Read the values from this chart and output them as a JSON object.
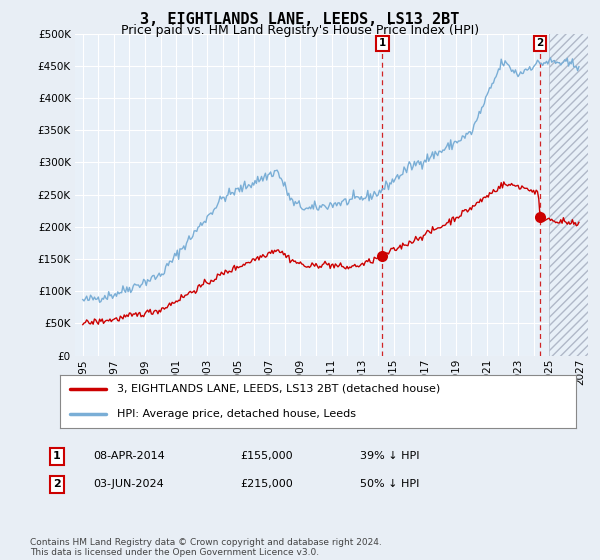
{
  "title": "3, EIGHTLANDS LANE, LEEDS, LS13 2BT",
  "subtitle": "Price paid vs. HM Land Registry's House Price Index (HPI)",
  "title_fontsize": 11,
  "subtitle_fontsize": 9,
  "bg_color": "#e8eef5",
  "plot_bg_color": "#e8f0f8",
  "grid_color": "#ffffff",
  "red_line_color": "#cc0000",
  "blue_line_color": "#7aaed6",
  "sale1_date": 2014.27,
  "sale1_price": 155000,
  "sale1_label": "08-APR-2014",
  "sale1_hpi_pct": "39% ↓ HPI",
  "sale2_date": 2024.42,
  "sale2_price": 215000,
  "sale2_label": "03-JUN-2024",
  "sale2_hpi_pct": "50% ↓ HPI",
  "ylim": [
    0,
    500000
  ],
  "yticks": [
    0,
    50000,
    100000,
    150000,
    200000,
    250000,
    300000,
    350000,
    400000,
    450000,
    500000
  ],
  "xlim": [
    1994.5,
    2027.5
  ],
  "hatch_start": 2025.0,
  "footnote": "Contains HM Land Registry data © Crown copyright and database right 2024.\nThis data is licensed under the Open Government Licence v3.0.",
  "legend_entry1": "3, EIGHTLANDS LANE, LEEDS, LS13 2BT (detached house)",
  "legend_entry2": "HPI: Average price, detached house, Leeds"
}
